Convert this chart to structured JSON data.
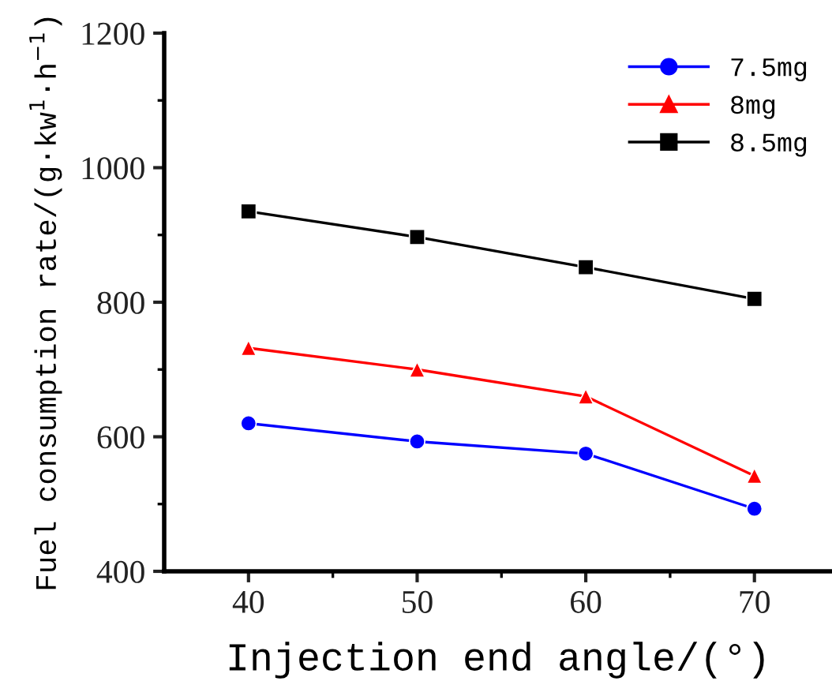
{
  "chart_data": {
    "type": "line",
    "xlabel": "Injection end angle/(°)",
    "ylabel": "Fuel consumption rate/(g·kw$^{1}$·h$^{−1}$)",
    "x": [
      40,
      50,
      60,
      70
    ],
    "series": [
      {
        "name": "7.5mg",
        "color": "#0000ff",
        "marker": "circle",
        "values": [
          620,
          593,
          575,
          493
        ]
      },
      {
        "name": "8mg",
        "color": "#ff0000",
        "marker": "triangle",
        "values": [
          732,
          700,
          660,
          542
        ]
      },
      {
        "name": "8.5mg",
        "color": "#000000",
        "marker": "square",
        "values": [
          935,
          897,
          852,
          805
        ]
      }
    ],
    "xlim": [
      35,
      74.6
    ],
    "xticks": [
      40,
      50,
      60,
      70
    ],
    "ylim": [
      400,
      1200
    ],
    "yticks": [
      400,
      600,
      800,
      1000,
      1200
    ],
    "grid": false,
    "legend": "top right"
  }
}
